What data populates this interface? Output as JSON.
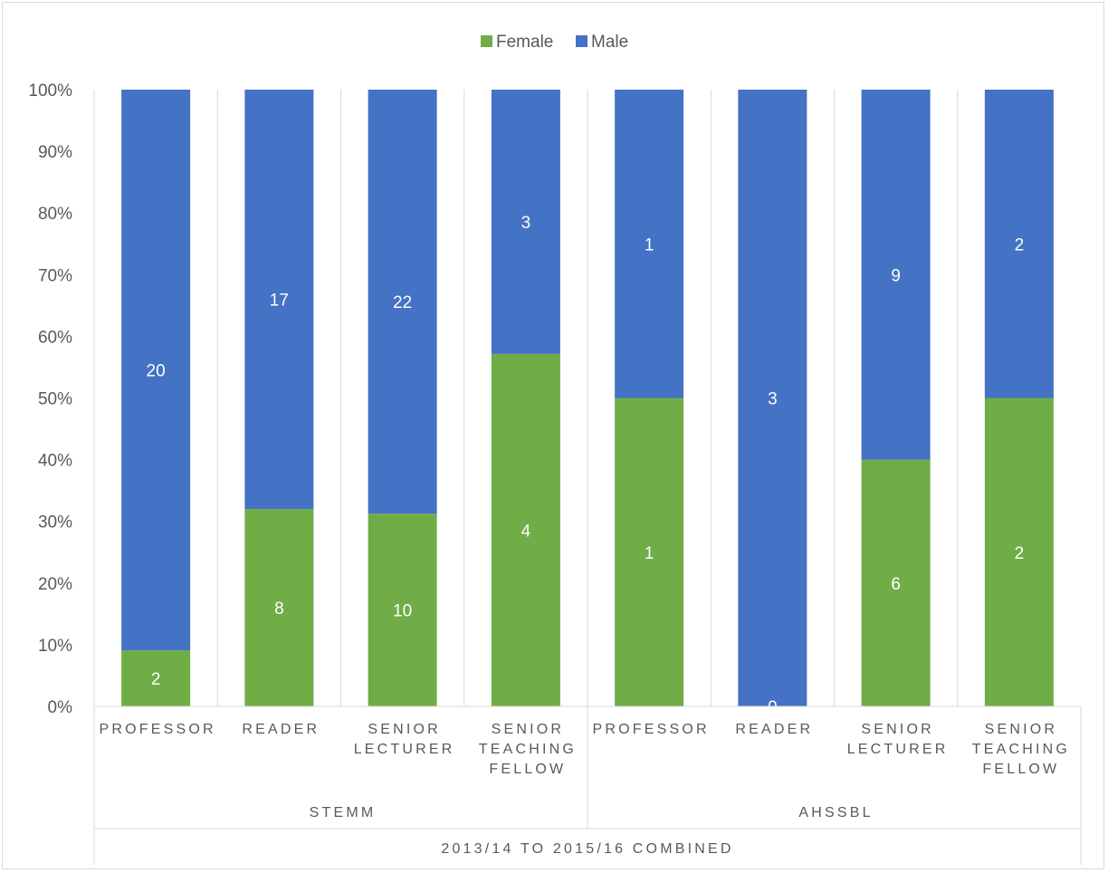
{
  "chart_data": {
    "type": "bar",
    "stacked": "percent",
    "legend": "top",
    "grid": "vertical",
    "colors": {
      "Female": "#70ad47",
      "Male": "#4472c4"
    },
    "outer_group": "2013/14 TO 2015/16 COMBINED",
    "groups": [
      {
        "name": "STEMM",
        "categories": [
          [
            "PROFESSOR"
          ],
          [
            "READER"
          ],
          [
            "SENIOR",
            "LECTURER"
          ],
          [
            "SENIOR",
            "TEACHING",
            "FELLOW"
          ]
        ]
      },
      {
        "name": "AHSSBL",
        "categories": [
          [
            "PROFESSOR"
          ],
          [
            "READER"
          ],
          [
            "SENIOR",
            "LECTURER"
          ],
          [
            "SENIOR",
            "TEACHING",
            "FELLOW"
          ]
        ]
      }
    ],
    "series": [
      {
        "name": "Female",
        "values": [
          2,
          8,
          10,
          4,
          1,
          0,
          6,
          2
        ]
      },
      {
        "name": "Male",
        "values": [
          20,
          17,
          22,
          3,
          1,
          3,
          9,
          2
        ]
      }
    ],
    "yticks": [
      "0%",
      "10%",
      "20%",
      "30%",
      "40%",
      "50%",
      "60%",
      "70%",
      "80%",
      "90%",
      "100%"
    ],
    "ylim": [
      0,
      100
    ]
  }
}
